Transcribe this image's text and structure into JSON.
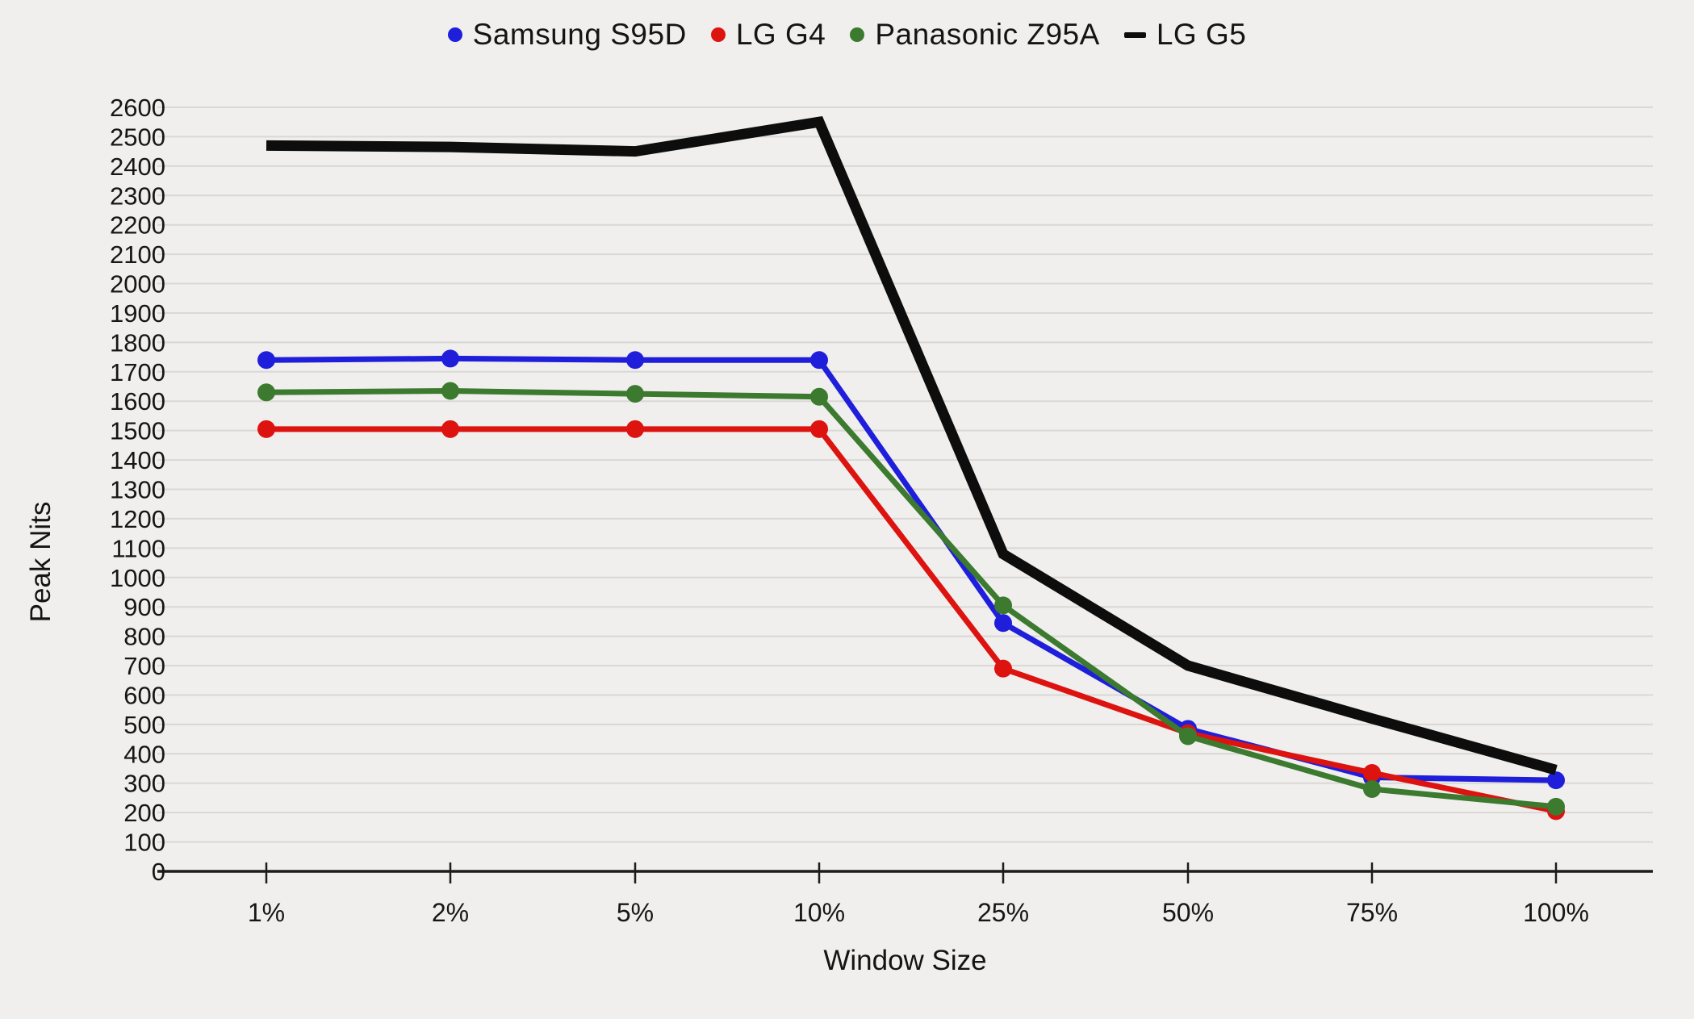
{
  "chart_data": {
    "type": "line",
    "title": "",
    "xlabel": "Window Size",
    "ylabel": "Peak Nits",
    "categories": [
      "1%",
      "2%",
      "5%",
      "10%",
      "25%",
      "50%",
      "75%",
      "100%"
    ],
    "series": [
      {
        "name": "Samsung S95D",
        "color": "#1f1fdb",
        "marker": "circle",
        "values": [
          1740,
          1745,
          1740,
          1740,
          845,
          485,
          320,
          310
        ]
      },
      {
        "name": "LG G4",
        "color": "#dd1310",
        "marker": "circle",
        "values": [
          1505,
          1505,
          1505,
          1505,
          690,
          470,
          335,
          205
        ]
      },
      {
        "name": "Panasonic Z95A",
        "color": "#3c7a2f",
        "marker": "circle",
        "values": [
          1630,
          1635,
          1625,
          1615,
          905,
          460,
          280,
          220
        ]
      },
      {
        "name": "LG G5",
        "color": "#0d0d0d",
        "marker": "dash",
        "values": [
          2470,
          2465,
          2450,
          2550,
          1080,
          700,
          520,
          345
        ]
      }
    ],
    "ylim": [
      0,
      2600
    ],
    "ytick_step": 100,
    "grid": "horizontal",
    "legend_position": "top"
  },
  "colors": {
    "background": "#f0efed",
    "gridline": "#d9d8d5",
    "axis": "#1c1c1c",
    "text": "#141414"
  }
}
